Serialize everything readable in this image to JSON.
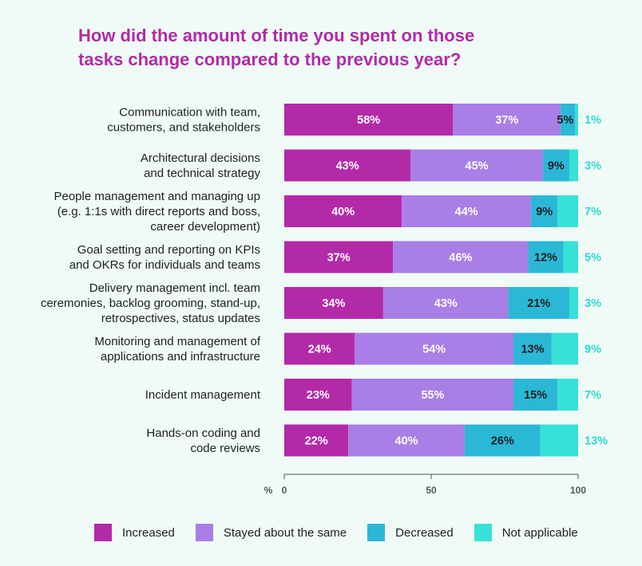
{
  "title_lines": [
    "How did the amount of time you spent on those",
    "tasks change compared to the previous year?"
  ],
  "colors": {
    "increased": "#b32aa8",
    "stayed": "#a97ee6",
    "decreased": "#2bb8d6",
    "not_applicable": "#36e1d8",
    "axis": "#555555"
  },
  "chart_data": {
    "type": "bar",
    "orientation": "horizontal",
    "stacked": true,
    "categories": [
      [
        "Communication with team,",
        "customers, and stakeholders"
      ],
      [
        "Architectural decisions",
        "and technical strategy"
      ],
      [
        "People management and managing up",
        "(e.g. 1:1s with direct reports and boss,",
        "career development)"
      ],
      [
        "Goal setting and reporting on KPIs",
        "and OKRs for individuals and teams"
      ],
      [
        "Delivery management incl. team",
        "ceremonies, backlog grooming, stand-up,",
        "retrospectives, status updates"
      ],
      [
        "Monitoring and management of",
        "applications and infrastructure"
      ],
      [
        "Incident management"
      ],
      [
        "Hands-on coding and",
        "code reviews"
      ]
    ],
    "series": [
      {
        "name": "Increased",
        "values": [
          58,
          43,
          40,
          37,
          34,
          24,
          23,
          22
        ]
      },
      {
        "name": "Stayed about the same",
        "values": [
          37,
          45,
          44,
          46,
          43,
          54,
          55,
          40
        ]
      },
      {
        "name": "Decreased",
        "values": [
          5,
          9,
          9,
          12,
          21,
          13,
          15,
          26
        ]
      },
      {
        "name": "Not applicable",
        "values": [
          1,
          3,
          7,
          5,
          3,
          9,
          7,
          13
        ]
      }
    ],
    "xlim": [
      0,
      100
    ],
    "xticks": [
      "0",
      "50",
      "100"
    ],
    "xlabel": "%",
    "legend_position": "bottom"
  }
}
